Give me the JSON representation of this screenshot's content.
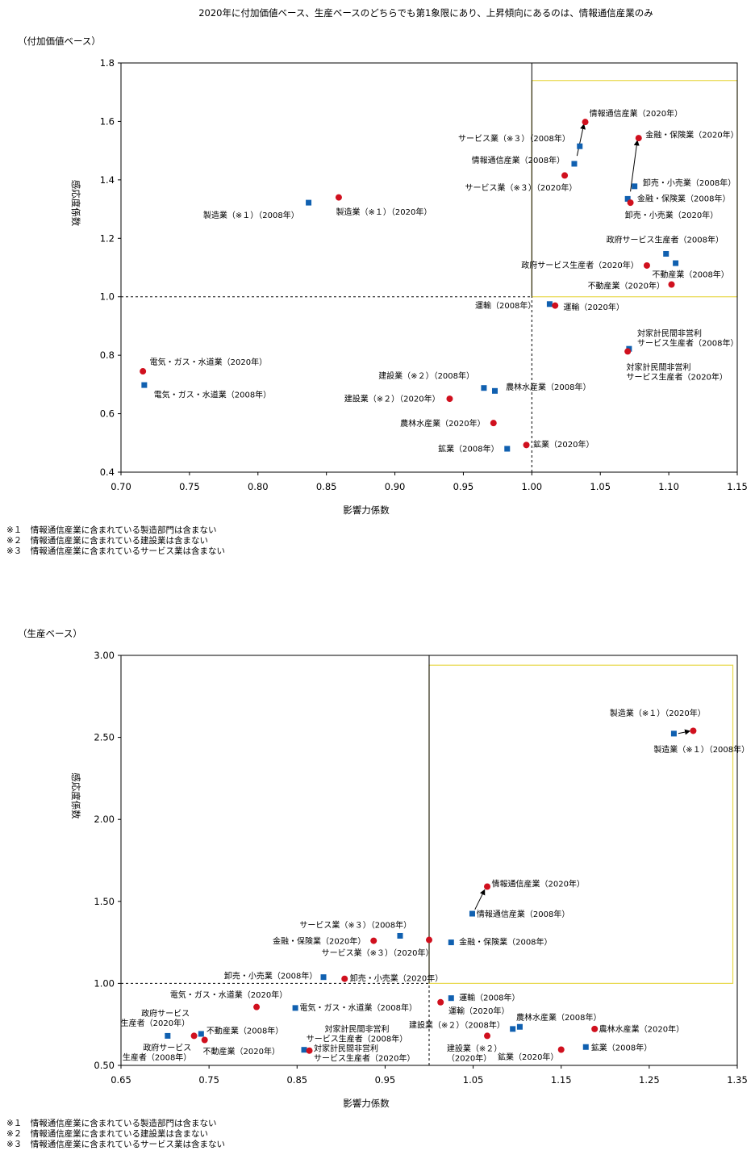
{
  "title": "2020年に付加価値ベース、生産ベースのどちらでも第1象限にあり、上昇傾向にあるのは、情報通信産業のみ",
  "colors": {
    "y2008": "#1060b0",
    "y2020": "#d0101e",
    "highlight": "#e8d84a",
    "axis": "#000000"
  },
  "chart_data": [
    {
      "type": "scatter",
      "subtitle": "（付加価値ベース）",
      "xlabel": "影響力係数",
      "ylabel": "感応度係数",
      "xlim": [
        0.7,
        1.15
      ],
      "ylim": [
        0.4,
        1.8
      ],
      "xticks": [
        0.7,
        0.75,
        0.8,
        0.85,
        0.9,
        0.95,
        1.0,
        1.05,
        1.1,
        1.15
      ],
      "yticks": [
        0.4,
        0.6,
        0.8,
        1.0,
        1.2,
        1.4,
        1.6,
        1.8
      ],
      "xtick_labels": [
        "0.70",
        "0.75",
        "0.80",
        "0.85",
        "0.90",
        "0.95",
        "1.00",
        "1.05",
        "1.10",
        "1.15"
      ],
      "ytick_labels": [
        "0.4",
        "0.6",
        "0.8",
        "1.0",
        "1.2",
        "1.4",
        "1.6",
        "1.8"
      ],
      "reference_lines": {
        "x": 1.0,
        "y": 1.0
      },
      "highlight_box": {
        "x": [
          1.0,
          1.15
        ],
        "y": [
          1.0,
          1.74
        ]
      },
      "points": [
        {
          "label": "情報通信産業（2008年）",
          "year": "2008",
          "x": 1.031,
          "y": 1.455
        },
        {
          "label": "情報通信産業（2020年）",
          "year": "2020",
          "x": 1.039,
          "y": 1.598
        },
        {
          "label": "サービス業（※３）（2008年）",
          "year": "2008",
          "x": 1.035,
          "y": 1.515
        },
        {
          "label": "サービス業（※３）（2020年）",
          "year": "2020",
          "x": 1.024,
          "y": 1.415
        },
        {
          "label": "金融・保険業（2008年）",
          "year": "2008",
          "x": 1.07,
          "y": 1.335
        },
        {
          "label": "金融・保険業（2020年）",
          "year": "2020",
          "x": 1.078,
          "y": 1.543
        },
        {
          "label": "卸売・小売業（2008年）",
          "year": "2008",
          "x": 1.075,
          "y": 1.378
        },
        {
          "label": "卸売・小売業（2020年）",
          "year": "2020",
          "x": 1.072,
          "y": 1.322
        },
        {
          "label": "製造業（※１）（2008年）",
          "year": "2008",
          "x": 0.837,
          "y": 1.322
        },
        {
          "label": "製造業（※１）（2020年）",
          "year": "2020",
          "x": 0.859,
          "y": 1.34
        },
        {
          "label": "政府サービス生産者（2008年）",
          "year": "2008",
          "x": 1.098,
          "y": 1.147
        },
        {
          "label": "政府サービス生産者（2020年）",
          "year": "2020",
          "x": 1.084,
          "y": 1.107
        },
        {
          "label": "不動産業（2008年）",
          "year": "2008",
          "x": 1.105,
          "y": 1.115
        },
        {
          "label": "不動産業（2020年）",
          "year": "2020",
          "x": 1.102,
          "y": 1.042
        },
        {
          "label": "運輸（2008年）",
          "year": "2008",
          "x": 1.013,
          "y": 0.975
        },
        {
          "label": "運輸（2020年）",
          "year": "2020",
          "x": 1.017,
          "y": 0.97
        },
        {
          "label": "対家計民間非営利サービス生産者（2008年）",
          "year": "2008",
          "x": 1.071,
          "y": 0.822
        },
        {
          "label": "対家計民間非営利サービス生産者（2020年）",
          "year": "2020",
          "x": 1.07,
          "y": 0.813
        },
        {
          "label": "電気・ガス・水道業（2008年）",
          "year": "2008",
          "x": 0.717,
          "y": 0.698
        },
        {
          "label": "電気・ガス・水道業（2020年）",
          "year": "2020",
          "x": 0.716,
          "y": 0.745
        },
        {
          "label": "建設業（※２）（2008年）",
          "year": "2008",
          "x": 0.965,
          "y": 0.688
        },
        {
          "label": "建設業（※２）（2020年）",
          "year": "2020",
          "x": 0.94,
          "y": 0.651
        },
        {
          "label": "農林水産業（2008年）",
          "year": "2008",
          "x": 0.973,
          "y": 0.678
        },
        {
          "label": "農林水産業（2020年）",
          "year": "2020",
          "x": 0.972,
          "y": 0.568
        },
        {
          "label": "鉱業（2008年）",
          "year": "2008",
          "x": 0.982,
          "y": 0.48
        },
        {
          "label": "鉱業（2020年）",
          "year": "2020",
          "x": 0.996,
          "y": 0.493
        }
      ],
      "annotations": [
        {
          "lines": [
            "情報通信産業（2020年）"
          ],
          "x": 1.042,
          "y": 1.618,
          "anchor": "start"
        },
        {
          "lines": [
            "サービス業（※３）（2008年）"
          ],
          "x": 1.028,
          "y": 1.532,
          "anchor": "end"
        },
        {
          "lines": [
            "情報通信産業（2008年）"
          ],
          "x": 1.024,
          "y": 1.458,
          "anchor": "end"
        },
        {
          "lines": [
            "サービス業（※３）（2020年）"
          ],
          "x": 1.033,
          "y": 1.364,
          "anchor": "end"
        },
        {
          "lines": [
            "金融・保険業（2020年）"
          ],
          "x": 1.083,
          "y": 1.545,
          "anchor": "start"
        },
        {
          "lines": [
            "卸売・小売業（2008年）"
          ],
          "x": 1.081,
          "y": 1.38,
          "anchor": "start"
        },
        {
          "lines": [
            "金融・保険業（2008年）"
          ],
          "x": 1.077,
          "y": 1.326,
          "anchor": "start"
        },
        {
          "lines": [
            "卸売・小売業（2020年）"
          ],
          "x": 1.068,
          "y": 1.27,
          "anchor": "start"
        },
        {
          "lines": [
            "製造業（※１）（2008年）"
          ],
          "x": 0.83,
          "y": 1.27,
          "anchor": "end"
        },
        {
          "lines": [
            "製造業（※１）（2020年）"
          ],
          "x": 0.857,
          "y": 1.281,
          "anchor": "start"
        },
        {
          "lines": [
            "政府サービス生産者（2008年）"
          ],
          "x": 1.14,
          "y": 1.186,
          "anchor": "end"
        },
        {
          "lines": [
            "政府サービス生産者（2020年）"
          ],
          "x": 1.078,
          "y": 1.099,
          "anchor": "end"
        },
        {
          "lines": [
            "不動産業（2008年）"
          ],
          "x": 1.144,
          "y": 1.067,
          "anchor": "end"
        },
        {
          "lines": [
            "不動産業（2020年）"
          ],
          "x": 1.097,
          "y": 1.028,
          "anchor": "end"
        },
        {
          "lines": [
            "運輸（2008年）"
          ],
          "x": 1.003,
          "y": 0.96,
          "anchor": "end"
        },
        {
          "lines": [
            "運輸（2020年）"
          ],
          "x": 1.023,
          "y": 0.955,
          "anchor": "start"
        },
        {
          "lines": [
            "対家計民間非営利",
            "サービス生産者（2008年）"
          ],
          "x": 1.077,
          "y": 0.865,
          "anchor": "start"
        },
        {
          "lines": [
            "対家計民間非営利",
            "サービス生産者（2020年）"
          ],
          "x": 1.069,
          "y": 0.75,
          "anchor": "start"
        },
        {
          "lines": [
            "電気・ガス・水道業（2020年）"
          ],
          "x": 0.721,
          "y": 0.767,
          "anchor": "start"
        },
        {
          "lines": [
            "電気・ガス・水道業（2008年）"
          ],
          "x": 0.724,
          "y": 0.655,
          "anchor": "start"
        },
        {
          "lines": [
            "建設業（※２）（2008年）"
          ],
          "x": 0.958,
          "y": 0.72,
          "anchor": "end"
        },
        {
          "lines": [
            "農林水産業（2008年）"
          ],
          "x": 0.981,
          "y": 0.682,
          "anchor": "start"
        },
        {
          "lines": [
            "建設業（※２）（2020年）"
          ],
          "x": 0.933,
          "y": 0.641,
          "anchor": "end"
        },
        {
          "lines": [
            "農林水産業（2020年）"
          ],
          "x": 0.966,
          "y": 0.558,
          "anchor": "end"
        },
        {
          "lines": [
            "鉱業（2008年）"
          ],
          "x": 0.976,
          "y": 0.47,
          "anchor": "end"
        },
        {
          "lines": [
            "鉱業（2020年）"
          ],
          "x": 1.001,
          "y": 0.485,
          "anchor": "start"
        }
      ],
      "arrows": [
        {
          "from": [
            1.033,
            1.482
          ],
          "to": [
            1.038,
            1.59
          ]
        },
        {
          "from": [
            1.072,
            1.36
          ],
          "to": [
            1.077,
            1.534
          ]
        }
      ],
      "footnotes": [
        "※１　情報通信産業に含まれている製造部門は含まない",
        "※２　情報通信産業に含まれている建設業は含まない",
        "※３　情報通信産業に含まれているサービス業は含まない"
      ]
    },
    {
      "type": "scatter",
      "subtitle": "（生産ベース）",
      "xlabel": "影響力係数",
      "ylabel": "感応度係数",
      "xlim": [
        0.65,
        1.35
      ],
      "ylim": [
        0.5,
        3.0
      ],
      "xticks": [
        0.65,
        0.75,
        0.85,
        0.95,
        1.05,
        1.15,
        1.25,
        1.35
      ],
      "yticks": [
        0.5,
        1.0,
        1.5,
        2.0,
        2.5,
        3.0
      ],
      "xtick_labels": [
        "0.65",
        "0.75",
        "0.85",
        "0.95",
        "1.05",
        "1.15",
        "1.25",
        "1.35"
      ],
      "ytick_labels": [
        "0.50",
        "1.00",
        "1.50",
        "2.00",
        "2.50",
        "3.00"
      ],
      "reference_lines": {
        "x": 1.0,
        "y": 1.0
      },
      "highlight_box": {
        "x": [
          1.0,
          1.345
        ],
        "y": [
          1.0,
          2.94
        ]
      },
      "points": [
        {
          "label": "製造業（※１）（2008年）",
          "year": "2008",
          "x": 1.278,
          "y": 2.523
        },
        {
          "label": "製造業（※１）（2020年）",
          "year": "2020",
          "x": 1.3,
          "y": 2.54
        },
        {
          "label": "情報通信産業（2008年）",
          "year": "2008",
          "x": 1.049,
          "y": 1.425
        },
        {
          "label": "情報通信産業（2020年）",
          "year": "2020",
          "x": 1.066,
          "y": 1.59
        },
        {
          "label": "サービス業（※３）（2008年）",
          "year": "2008",
          "x": 0.967,
          "y": 1.29
        },
        {
          "label": "サービス業（※３）（2020年）",
          "year": "2020",
          "x": 1.0,
          "y": 1.265
        },
        {
          "label": "金融・保険業（2008年）",
          "year": "2008",
          "x": 1.025,
          "y": 1.25
        },
        {
          "label": "金融・保険業（2020年）",
          "year": "2020",
          "x": 0.937,
          "y": 1.26
        },
        {
          "label": "卸売・小売業（2008年）",
          "year": "2008",
          "x": 0.88,
          "y": 1.038
        },
        {
          "label": "卸売・小売業（2020年）",
          "year": "2020",
          "x": 0.904,
          "y": 1.028
        },
        {
          "label": "運輸（2008年）",
          "year": "2008",
          "x": 1.025,
          "y": 0.91
        },
        {
          "label": "運輸（2020年）",
          "year": "2020",
          "x": 1.013,
          "y": 0.885
        },
        {
          "label": "電気・ガス・水道業（2008年）",
          "year": "2008",
          "x": 0.848,
          "y": 0.85
        },
        {
          "label": "電気・ガス・水道業（2020年）",
          "year": "2020",
          "x": 0.804,
          "y": 0.856
        },
        {
          "label": "農林水産業（2008年）",
          "year": "2008",
          "x": 1.103,
          "y": 0.735
        },
        {
          "label": "農林水産業（2020年）",
          "year": "2020",
          "x": 1.188,
          "y": 0.722
        },
        {
          "label": "建設業（※２）（2008年）",
          "year": "2008",
          "x": 1.095,
          "y": 0.722
        },
        {
          "label": "建設業（※２）（2020年）",
          "year": "2020",
          "x": 1.066,
          "y": 0.68
        },
        {
          "label": "政府サービス生産者（2008年）",
          "year": "2008",
          "x": 0.703,
          "y": 0.68
        },
        {
          "label": "政府サービス生産者（2020年）",
          "year": "2020",
          "x": 0.733,
          "y": 0.68
        },
        {
          "label": "不動産業（2008年）",
          "year": "2008",
          "x": 0.741,
          "y": 0.692
        },
        {
          "label": "不動産業（2020年）",
          "year": "2020",
          "x": 0.745,
          "y": 0.655
        },
        {
          "label": "対家計民間非営利サービス生産者（2008年）",
          "year": "2008",
          "x": 0.858,
          "y": 0.595
        },
        {
          "label": "対家計民間非営利サービス生産者（2020年）",
          "year": "2020",
          "x": 0.864,
          "y": 0.59
        },
        {
          "label": "鉱業（2008年）",
          "year": "2008",
          "x": 1.178,
          "y": 0.612
        },
        {
          "label": "鉱業（2020年）",
          "year": "2020",
          "x": 1.15,
          "y": 0.596
        }
      ],
      "annotations": [
        {
          "lines": [
            "製造業（※１）（2020年）"
          ],
          "x": 1.314,
          "y": 2.63,
          "anchor": "end"
        },
        {
          "lines": [
            "製造業（※１）（2008年）"
          ],
          "x": 1.255,
          "y": 2.41,
          "anchor": "start"
        },
        {
          "lines": [
            "情報通信産業（2020年）"
          ],
          "x": 1.071,
          "y": 1.59,
          "anchor": "start"
        },
        {
          "lines": [
            "情報通信産業（2008年）"
          ],
          "x": 1.054,
          "y": 1.405,
          "anchor": "start"
        },
        {
          "lines": [
            "サービス業（※３）（2008年）"
          ],
          "x": 0.98,
          "y": 1.34,
          "anchor": "end"
        },
        {
          "lines": [
            "金融・保険業（2020年）"
          ],
          "x": 0.928,
          "y": 1.24,
          "anchor": "end"
        },
        {
          "lines": [
            "金融・保険業（2008年）"
          ],
          "x": 1.034,
          "y": 1.235,
          "anchor": "start"
        },
        {
          "lines": [
            "サービス業（※３）（2020年）"
          ],
          "x": 1.005,
          "y": 1.17,
          "anchor": "end"
        },
        {
          "lines": [
            "卸売・小売業（2008年）"
          ],
          "x": 0.873,
          "y": 1.03,
          "anchor": "end"
        },
        {
          "lines": [
            "卸売・小売業（2020年）"
          ],
          "x": 0.91,
          "y": 1.015,
          "anchor": "start"
        },
        {
          "lines": [
            "運輸（2008年）"
          ],
          "x": 1.034,
          "y": 0.895,
          "anchor": "start"
        },
        {
          "lines": [
            "運輸（2020年）"
          ],
          "x": 1.022,
          "y": 0.815,
          "anchor": "start"
        },
        {
          "lines": [
            "電気・ガス・水道業（2020年）"
          ],
          "x": 0.839,
          "y": 0.913,
          "anchor": "end"
        },
        {
          "lines": [
            "電気・ガス・水道業（2008年）"
          ],
          "x": 0.853,
          "y": 0.835,
          "anchor": "start"
        },
        {
          "lines": [
            "農林水産業（2008年）"
          ],
          "x": 1.099,
          "y": 0.775,
          "anchor": "start"
        },
        {
          "lines": [
            "農林水産業（2020年）"
          ],
          "x": 1.193,
          "y": 0.705,
          "anchor": "start"
        },
        {
          "lines": [
            "建設業（※２）（2008年）"
          ],
          "x": 1.086,
          "y": 0.73,
          "anchor": "end"
        },
        {
          "lines": [
            "政府サービス",
            "生産者（2020年）"
          ],
          "x": 0.728,
          "y": 0.8,
          "anchor": "end"
        },
        {
          "lines": [
            "不動産業（2008年）"
          ],
          "x": 0.747,
          "y": 0.695,
          "anchor": "start"
        },
        {
          "lines": [
            "対家計民間非営利",
            "サービス生産者（2008年）"
          ],
          "x": 0.918,
          "y": 0.705,
          "anchor": "middle"
        },
        {
          "lines": [
            "政府サービス",
            "生産者（2008年）"
          ],
          "x": 0.73,
          "y": 0.59,
          "anchor": "end"
        },
        {
          "lines": [
            "不動産業（2020年）"
          ],
          "x": 0.743,
          "y": 0.57,
          "anchor": "start"
        },
        {
          "lines": [
            "建設業（※２）",
            "（2020年）"
          ],
          "x": 1.02,
          "y": 0.585,
          "anchor": "start"
        },
        {
          "lines": [
            "対家計民間非営利",
            "サービス生産者（2020年）"
          ],
          "x": 0.869,
          "y": 0.585,
          "anchor": "start"
        },
        {
          "lines": [
            "鉱業（2008年）"
          ],
          "x": 1.184,
          "y": 0.59,
          "anchor": "start"
        },
        {
          "lines": [
            "鉱業（2020年）"
          ],
          "x": 1.147,
          "y": 0.535,
          "anchor": "end"
        }
      ],
      "arrows": [
        {
          "from": [
            1.052,
            1.45
          ],
          "to": [
            1.063,
            1.57
          ]
        },
        {
          "from": [
            1.283,
            2.524
          ],
          "to": [
            1.296,
            2.538
          ]
        }
      ],
      "footnotes": [
        "※１　情報通信産業に含まれている製造部門は含まない",
        "※２　情報通信産業に含まれている建設業は含まない",
        "※３　情報通信産業に含まれているサービス業は含まない"
      ]
    }
  ]
}
